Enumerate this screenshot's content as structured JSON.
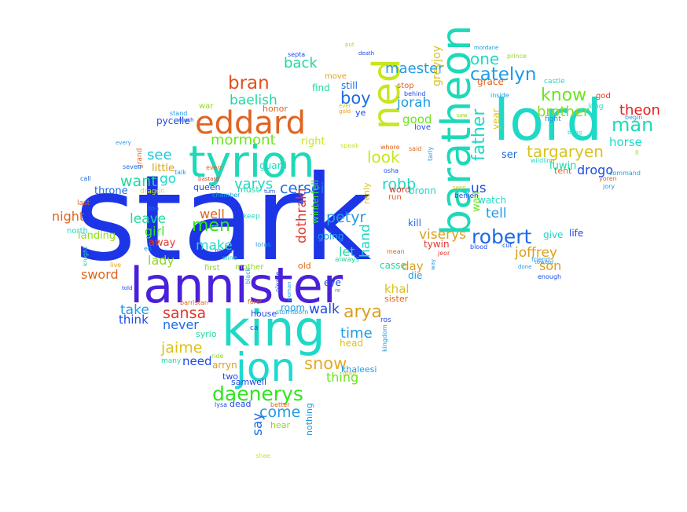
{
  "words": [
    {
      "text": "stark",
      "color": "#1c35e6"
    },
    {
      "text": "lannister",
      "color": "#4a20d9"
    },
    {
      "text": "king",
      "color": "#1ed9c6"
    },
    {
      "text": "tyrion",
      "color": "#1ed9b8"
    },
    {
      "text": "lord",
      "color": "#1ed9c6"
    },
    {
      "text": "baratheon",
      "color": "#1ed9b8"
    },
    {
      "text": "eddard",
      "color": "#e06420"
    },
    {
      "text": "ned",
      "color": "#c8e61e"
    },
    {
      "text": "jon",
      "color": "#1ed9d0"
    },
    {
      "text": "daenerys",
      "color": "#2ee61e"
    },
    {
      "text": "robert",
      "color": "#1e6be6"
    },
    {
      "text": "catelyn",
      "color": "#1e9be6"
    },
    {
      "text": "one",
      "color": "#1ed9c6"
    },
    {
      "text": "father",
      "color": "#1ed9c6"
    },
    {
      "text": "know",
      "color": "#6be61e"
    },
    {
      "text": "brother",
      "color": "#8fd91e"
    },
    {
      "text": "targaryen",
      "color": "#d9c21e"
    },
    {
      "text": "man",
      "color": "#1ed9b8"
    },
    {
      "text": "theon",
      "color": "#e61e1e"
    },
    {
      "text": "drogo",
      "color": "#1e4ae6"
    },
    {
      "text": "horse",
      "color": "#1ed9c6"
    },
    {
      "text": "arya",
      "color": "#d9a01e"
    },
    {
      "text": "snow",
      "color": "#e6a81e"
    },
    {
      "text": "sansa",
      "color": "#e03a2e"
    },
    {
      "text": "jaime",
      "color": "#d9c21e"
    },
    {
      "text": "cersei",
      "color": "#1e6be6"
    },
    {
      "text": "bran",
      "color": "#e0501e"
    },
    {
      "text": "baelish",
      "color": "#1ed9a0"
    },
    {
      "text": "mormont",
      "color": "#6be61e"
    },
    {
      "text": "see",
      "color": "#1ec6d9"
    },
    {
      "text": "want",
      "color": "#1ed9a0"
    },
    {
      "text": "go",
      "color": "#1ed9c6"
    },
    {
      "text": "men",
      "color": "#2ee61e"
    },
    {
      "text": "varys",
      "color": "#1ed9c6"
    },
    {
      "text": "night",
      "color": "#e0641e"
    },
    {
      "text": "sword",
      "color": "#e0641e"
    },
    {
      "text": "robb",
      "color": "#1ed9c6"
    },
    {
      "text": "look",
      "color": "#c8e61e"
    },
    {
      "text": "boy",
      "color": "#1e6be6"
    },
    {
      "text": "jorah",
      "color": "#1e9be6"
    },
    {
      "text": "maester",
      "color": "#1e9be6"
    },
    {
      "text": "back",
      "color": "#1ed9a0"
    },
    {
      "text": "petyr",
      "color": "#1e9be6"
    },
    {
      "text": "viserys",
      "color": "#d9a01e"
    },
    {
      "text": "joffrey",
      "color": "#d9a01e"
    },
    {
      "text": "son",
      "color": "#d9a01e"
    },
    {
      "text": "tell",
      "color": "#1e9be6"
    },
    {
      "text": "us",
      "color": "#1e4ae6"
    },
    {
      "text": "come",
      "color": "#1e9be6"
    },
    {
      "text": "walk",
      "color": "#1e4ae6"
    },
    {
      "text": "time",
      "color": "#1e9be6"
    },
    {
      "text": "say",
      "color": "#1e6be6"
    },
    {
      "text": "take",
      "color": "#1e9be6"
    },
    {
      "text": "think",
      "color": "#1e4ae6"
    },
    {
      "text": "never",
      "color": "#1e6be6"
    },
    {
      "text": "need",
      "color": "#1e4ae6"
    },
    {
      "text": "leave",
      "color": "#1ed9a0"
    },
    {
      "text": "girl",
      "color": "#2ee61e"
    },
    {
      "text": "make",
      "color": "#1ed9c6"
    },
    {
      "text": "well",
      "color": "#e0641e"
    },
    {
      "text": "lady",
      "color": "#8fd91e"
    },
    {
      "text": "little",
      "color": "#e0a01e"
    },
    {
      "text": "thing",
      "color": "#6be61e"
    },
    {
      "text": "khal",
      "color": "#d9c21e"
    },
    {
      "text": "day",
      "color": "#d9a01e"
    },
    {
      "text": "hand",
      "color": "#1ed9c6"
    },
    {
      "text": "let",
      "color": "#1ed9a0"
    },
    {
      "text": "dothraki",
      "color": "#e03a2e"
    },
    {
      "text": "good",
      "color": "#6be61e"
    },
    {
      "text": "ser",
      "color": "#1e6be6"
    },
    {
      "text": "luwin",
      "color": "#1ed9a0"
    },
    {
      "text": "right",
      "color": "#c8e61e"
    },
    {
      "text": "pycelle",
      "color": "#1e4ae6"
    },
    {
      "text": "throne",
      "color": "#1e6be6"
    },
    {
      "text": "landing",
      "color": "#8fd91e"
    },
    {
      "text": "away",
      "color": "#e03a2e"
    },
    {
      "text": "greyjoy",
      "color": "#d9c21e"
    },
    {
      "text": "grace",
      "color": "#e0641e"
    },
    {
      "text": "year",
      "color": "#d9c21e"
    },
    {
      "text": "still",
      "color": "#1e6be6"
    },
    {
      "text": "find",
      "color": "#1ed9a0"
    },
    {
      "text": "wall",
      "color": "#6be61e"
    },
    {
      "text": "watch",
      "color": "#1ed9c6"
    },
    {
      "text": "give",
      "color": "#1ed9c6"
    },
    {
      "text": "life",
      "color": "#1e4ae6"
    },
    {
      "text": "tywin",
      "color": "#e03a2e"
    },
    {
      "text": "bronn",
      "color": "#1ed9c6"
    },
    {
      "text": "kill",
      "color": "#1e6be6"
    },
    {
      "text": "winterfell",
      "color": "#2ee61e"
    },
    {
      "text": "renly",
      "color": "#d9c21e"
    },
    {
      "text": "going",
      "color": "#1e9be6"
    },
    {
      "text": "cassel",
      "color": "#1ed9a0"
    },
    {
      "text": "die",
      "color": "#1e9be6"
    },
    {
      "text": "eye",
      "color": "#1e4ae6"
    },
    {
      "text": "room",
      "color": "#1e9be6"
    },
    {
      "text": "head",
      "color": "#d9c21e"
    },
    {
      "text": "khaleesi",
      "color": "#1e9be6"
    },
    {
      "text": "arryn",
      "color": "#d9a01e"
    },
    {
      "text": "samwell",
      "color": "#1e4ae6"
    },
    {
      "text": "two",
      "color": "#1e4ae6"
    },
    {
      "text": "dead",
      "color": "#1e4ae6"
    },
    {
      "text": "hear",
      "color": "#8fd91e"
    },
    {
      "text": "nothing",
      "color": "#1e9be6"
    },
    {
      "text": "house",
      "color": "#1e4ae6"
    },
    {
      "text": "syrio",
      "color": "#1ed9a0"
    },
    {
      "text": "old",
      "color": "#e0641e"
    },
    {
      "text": "first",
      "color": "#8fd91e"
    },
    {
      "text": "mother",
      "color": "#8fd91e"
    },
    {
      "text": "queen",
      "color": "#1e4ae6"
    },
    {
      "text": "must",
      "color": "#1ed9a0"
    },
    {
      "text": "guard",
      "color": "#1ed9c6"
    },
    {
      "text": "honor",
      "color": "#e0641e"
    },
    {
      "text": "stop",
      "color": "#e0641e"
    },
    {
      "text": "behind",
      "color": "#1e4ae6"
    },
    {
      "text": "love",
      "color": "#1e4ae6"
    },
    {
      "text": "sister",
      "color": "#e0641e"
    },
    {
      "text": "ye",
      "color": "#1e4ae6"
    },
    {
      "text": "word",
      "color": "#e03a2e"
    },
    {
      "text": "run",
      "color": "#e0641e"
    },
    {
      "text": "benjen",
      "color": "#1e4ae6"
    },
    {
      "text": "tent",
      "color": "#e0641e"
    },
    {
      "text": "castle",
      "color": "#1ed9c6"
    },
    {
      "text": "fight",
      "color": "#1e9be6"
    },
    {
      "text": "long",
      "color": "#1ed9c6"
    },
    {
      "text": "god",
      "color": "#e03a2e"
    },
    {
      "text": "begin",
      "color": "#1e9be6"
    },
    {
      "text": "move",
      "color": "#e0a01e"
    },
    {
      "text": "septa",
      "color": "#1e4ae6"
    },
    {
      "text": "death",
      "color": "#1e4ae6"
    },
    {
      "text": "put",
      "color": "#d9c21e"
    },
    {
      "text": "mordane",
      "color": "#1e9be6"
    },
    {
      "text": "prince",
      "color": "#8fd91e"
    },
    {
      "text": "inside",
      "color": "#1e9be6"
    },
    {
      "text": "war",
      "color": "#8fd91e"
    },
    {
      "text": "stand",
      "color": "#1e9be6"
    },
    {
      "text": "much",
      "color": "#1e4ae6"
    },
    {
      "text": "every",
      "color": "#1e9be6"
    },
    {
      "text": "grand",
      "color": "#e0641e"
    },
    {
      "text": "seven",
      "color": "#1e6be6"
    },
    {
      "text": "call",
      "color": "#1e6be6"
    },
    {
      "text": "dragon",
      "color": "#c8e61e"
    },
    {
      "text": "last",
      "color": "#e0641e"
    },
    {
      "text": "north",
      "color": "#1ed9c6"
    },
    {
      "text": "knight",
      "color": "#1ed9a0"
    },
    {
      "text": "keep",
      "color": "#1ed9c6"
    },
    {
      "text": "always",
      "color": "#1ed9a0"
    },
    {
      "text": "please",
      "color": "#1e4ae6"
    },
    {
      "text": "barristan",
      "color": "#e0641e"
    },
    {
      "text": "ros",
      "color": "#1e4ae6"
    },
    {
      "text": "ride",
      "color": "#8fd91e"
    },
    {
      "text": "many",
      "color": "#1ed9a0"
    },
    {
      "text": "better",
      "color": "#e0641e"
    },
    {
      "text": "door",
      "color": "#d9c21e"
    },
    {
      "text": "kingdom",
      "color": "#1e9be6"
    },
    {
      "text": "shae",
      "color": "#c8e61e"
    },
    {
      "text": "lysa",
      "color": "#1e4ae6"
    },
    {
      "text": "jeor",
      "color": "#e03a2e"
    },
    {
      "text": "mean",
      "color": "#e0641e"
    },
    {
      "text": "cut",
      "color": "#1e4ae6"
    },
    {
      "text": "blood",
      "color": "#1e4ae6"
    },
    {
      "text": "friend",
      "color": "#1e9be6"
    },
    {
      "text": "toward",
      "color": "#1e9be6"
    },
    {
      "text": "done",
      "color": "#1e9be6"
    },
    {
      "text": "woman",
      "color": "#1e9be6"
    },
    {
      "text": "enough",
      "color": "#1e4ae6"
    },
    {
      "text": "command",
      "color": "#1e9be6"
    },
    {
      "text": "yoren",
      "color": "#e0641e"
    },
    {
      "text": "jory",
      "color": "#1e9be6"
    },
    {
      "text": "bring",
      "color": "#1ed9c6"
    },
    {
      "text": "wildling",
      "color": "#1ed9c6"
    },
    {
      "text": "whore",
      "color": "#e0641e"
    },
    {
      "text": "said",
      "color": "#e0641e"
    },
    {
      "text": "osha",
      "color": "#1e4ae6"
    },
    {
      "text": "speak",
      "color": "#c8e61e"
    },
    {
      "text": "loras",
      "color": "#1e9be6"
    },
    {
      "text": "told",
      "color": "#1e4ae6"
    },
    {
      "text": "bastard",
      "color": "#e03a2e"
    },
    {
      "text": "talk",
      "color": "#1e9be6"
    },
    {
      "text": "don",
      "color": "#1e6be6"
    },
    {
      "text": "name",
      "color": "#1e4ae6"
    },
    {
      "text": "wine",
      "color": "#1ed9c6"
    },
    {
      "text": "chamber",
      "color": "#1e9be6"
    },
    {
      "text": "turn",
      "color": "#1e4ae6"
    },
    {
      "text": "tarly",
      "color": "#1e9be6"
    },
    {
      "text": "saw",
      "color": "#8fd91e"
    },
    {
      "text": "ever",
      "color": "#d9c21e"
    },
    {
      "text": "gold",
      "color": "#e0a01e"
    },
    {
      "text": "seen",
      "color": "#d9c21e"
    },
    {
      "text": "way",
      "color": "#1e9be6"
    },
    {
      "text": "stormborn",
      "color": "#1e9be6"
    },
    {
      "text": "forel",
      "color": "#e0641e"
    },
    {
      "text": "re",
      "color": "#1e9be6"
    },
    {
      "text": "eh",
      "color": "#1e9be6"
    },
    {
      "text": "black",
      "color": "#1e9be6"
    },
    {
      "text": "live",
      "color": "#e0a01e"
    },
    {
      "text": "ca",
      "color": "#1e4ae6"
    },
    {
      "text": "even",
      "color": "#e0641e"
    },
    {
      "text": "ll",
      "color": "#8fd91e"
    }
  ]
}
